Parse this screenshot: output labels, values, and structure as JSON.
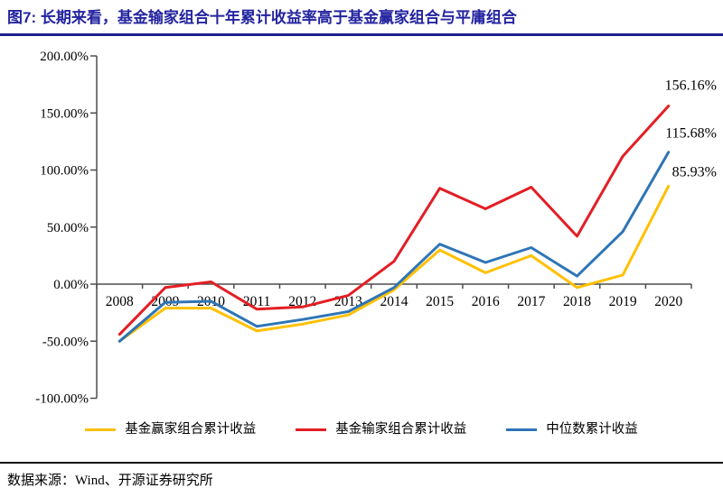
{
  "figure": {
    "title": "图7: 长期来看，基金输家组合十年累计收益率高于基金赢家组合与平庸组合",
    "source": "数据来源：Wind、开源证券研究所"
  },
  "colors": {
    "title_navy": "#2424A0",
    "rule_navy": "#1F1F8F",
    "axis_gray": "#4D4D4D",
    "winner_yellow": "#FFC000",
    "loser_red": "#E31E24",
    "median_blue": "#2E75B6"
  },
  "chart_data": {
    "type": "line",
    "categories": [
      "2008",
      "2009",
      "2010",
      "2011",
      "2012",
      "2013",
      "2014",
      "2015",
      "2016",
      "2017",
      "2018",
      "2019",
      "2020"
    ],
    "series": [
      {
        "id": "winner",
        "name": "基金赢家组合累计收益",
        "color": "#FFC000",
        "values": [
          -50,
          -21,
          -21,
          -41,
          -35,
          -27,
          -5,
          30,
          10,
          25,
          -3,
          8,
          85.93
        ],
        "end_label": "85.93%"
      },
      {
        "id": "loser",
        "name": "基金输家组合累计收益",
        "color": "#E31E24",
        "values": [
          -44,
          -3,
          2,
          -22,
          -20,
          -10,
          20,
          84,
          66,
          85,
          42,
          112,
          156.16
        ],
        "end_label": "156.16%"
      },
      {
        "id": "median",
        "name": "中位数累计收益",
        "color": "#2E75B6",
        "values": [
          -50,
          -16,
          -15,
          -37,
          -31,
          -24,
          -3,
          35,
          19,
          32,
          7,
          46,
          115.68
        ],
        "end_label": "115.68%"
      }
    ],
    "ylabel": "",
    "xlabel": "",
    "ylim": [
      -100,
      200
    ],
    "ytick_step": 50,
    "ytick_labels": [
      "200.00%",
      "150.00%",
      "100.00%",
      "50.00%",
      "0.00%",
      "-50.00%",
      "-100.00%"
    ],
    "grid": false,
    "legend_position": "bottom"
  }
}
